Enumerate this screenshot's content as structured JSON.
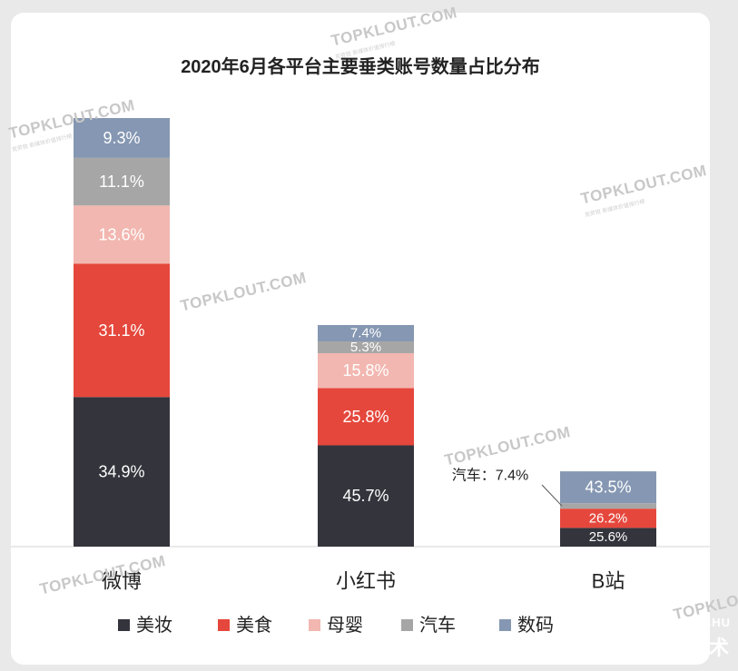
{
  "chart_data": {
    "type": "bar",
    "stacked": true,
    "title": "2020年6月各平台主要垂类账号数量占比分布",
    "categories": [
      "微博",
      "小红书",
      "B站"
    ],
    "series": [
      {
        "name": "美妆",
        "color": "#34343c",
        "values": [
          34.9,
          45.7,
          25.6
        ],
        "labels": [
          "34.9%",
          "45.7%",
          "25.6%"
        ]
      },
      {
        "name": "美食",
        "color": "#e5473c",
        "values": [
          31.1,
          25.8,
          26.2
        ],
        "labels": [
          "31.1%",
          "25.8%",
          "26.2%"
        ]
      },
      {
        "name": "母婴",
        "color": "#f2b7b0",
        "values": [
          13.6,
          15.8,
          0
        ],
        "labels": [
          "13.6%",
          "15.8%",
          ""
        ]
      },
      {
        "name": "汽车",
        "color": "#a6a6a6",
        "values": [
          11.1,
          5.3,
          7.4
        ],
        "labels": [
          "11.1%",
          "5.3%",
          ""
        ]
      },
      {
        "name": "数码",
        "color": "#8597b2",
        "values": [
          9.3,
          7.4,
          43.5
        ],
        "labels": [
          "9.3%",
          "7.4%",
          "43.5%"
        ]
      }
    ],
    "annotations": [
      {
        "text": "汽车：7.4%",
        "category": "B站",
        "series": "汽车"
      }
    ],
    "legend": {
      "position": "bottom"
    },
    "grid": false
  },
  "watermark": {
    "text": "TOPKLOUT.COM",
    "subtext": "克劳锐 新媒体价值排行榜"
  },
  "brand": {
    "en": "CHUANG LI SHU",
    "cn": "创作有术"
  }
}
